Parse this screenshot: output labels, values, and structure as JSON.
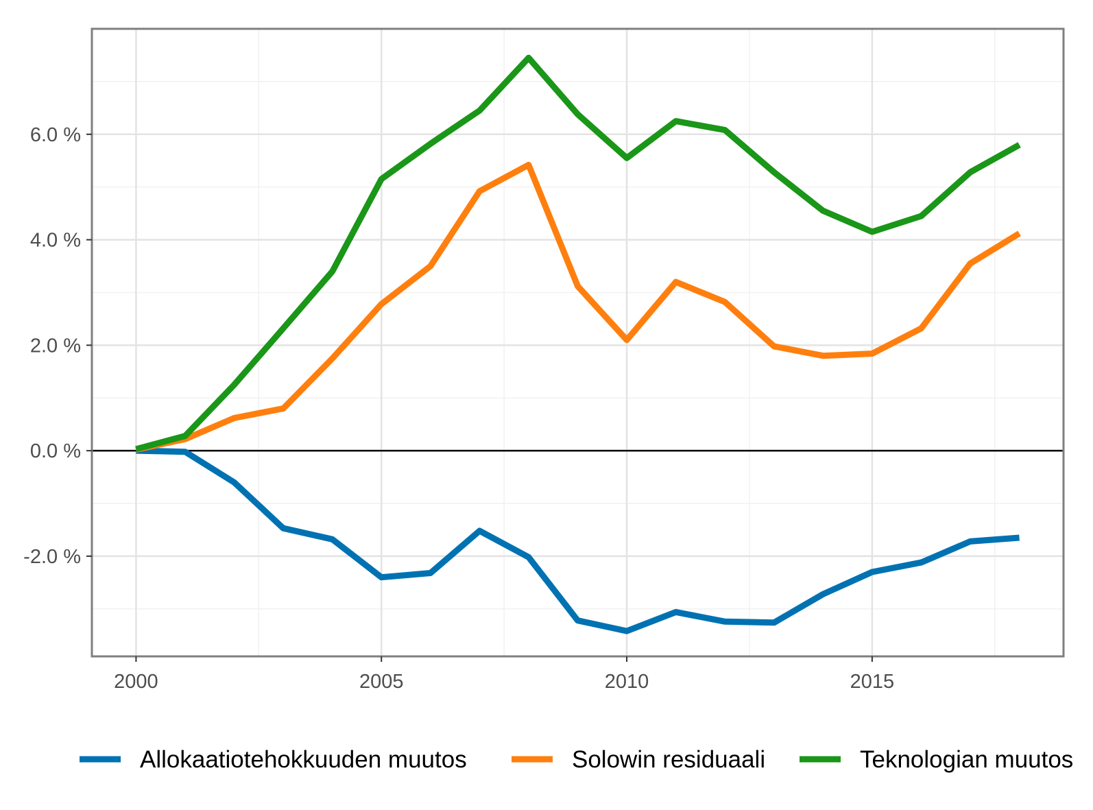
{
  "chart_data": {
    "type": "line",
    "title": "",
    "xlabel": "",
    "ylabel": "",
    "xlim": [
      1999.1,
      2018.9
    ],
    "ylim": [
      -3.9,
      8.0
    ],
    "x_ticks": [
      2000,
      2005,
      2010,
      2015
    ],
    "x_tick_labels": [
      "2000",
      "2005",
      "2010",
      "2015"
    ],
    "y_ticks": [
      -2,
      0,
      2,
      4,
      6
    ],
    "y_tick_labels": [
      "-2.0 %",
      "0.0 %",
      "2.0 %",
      "4.0 %",
      "6.0 %"
    ],
    "grid": true,
    "zero_line": true,
    "legend_position": "bottom",
    "x": [
      2000,
      2001,
      2002,
      2003,
      2004,
      2005,
      2006,
      2007,
      2008,
      2009,
      2010,
      2011,
      2012,
      2013,
      2014,
      2015,
      2016,
      2017,
      2018
    ],
    "series": [
      {
        "name": "Allokaatiotehokkuuden muutos",
        "color": "#0072b2",
        "values": [
          0.0,
          -0.02,
          -0.6,
          -1.47,
          -1.68,
          -2.4,
          -2.32,
          -1.52,
          -2.02,
          -3.22,
          -3.42,
          -3.06,
          -3.24,
          -3.26,
          -2.72,
          -2.3,
          -2.12,
          -1.72,
          -1.65
        ]
      },
      {
        "name": "Solowin residuaali",
        "color": "#ff7f0e",
        "values": [
          0.02,
          0.22,
          0.62,
          0.8,
          1.75,
          2.78,
          3.5,
          4.92,
          5.42,
          3.12,
          2.1,
          3.2,
          2.82,
          1.98,
          1.8,
          1.84,
          2.32,
          3.55,
          4.12
        ]
      },
      {
        "name": "Teknologian muutos",
        "color": "#1a9618",
        "values": [
          0.03,
          0.28,
          1.25,
          2.32,
          3.4,
          5.15,
          5.82,
          6.45,
          7.45,
          6.38,
          5.55,
          6.25,
          6.08,
          5.28,
          4.55,
          4.15,
          4.45,
          5.28,
          5.8
        ]
      }
    ]
  }
}
